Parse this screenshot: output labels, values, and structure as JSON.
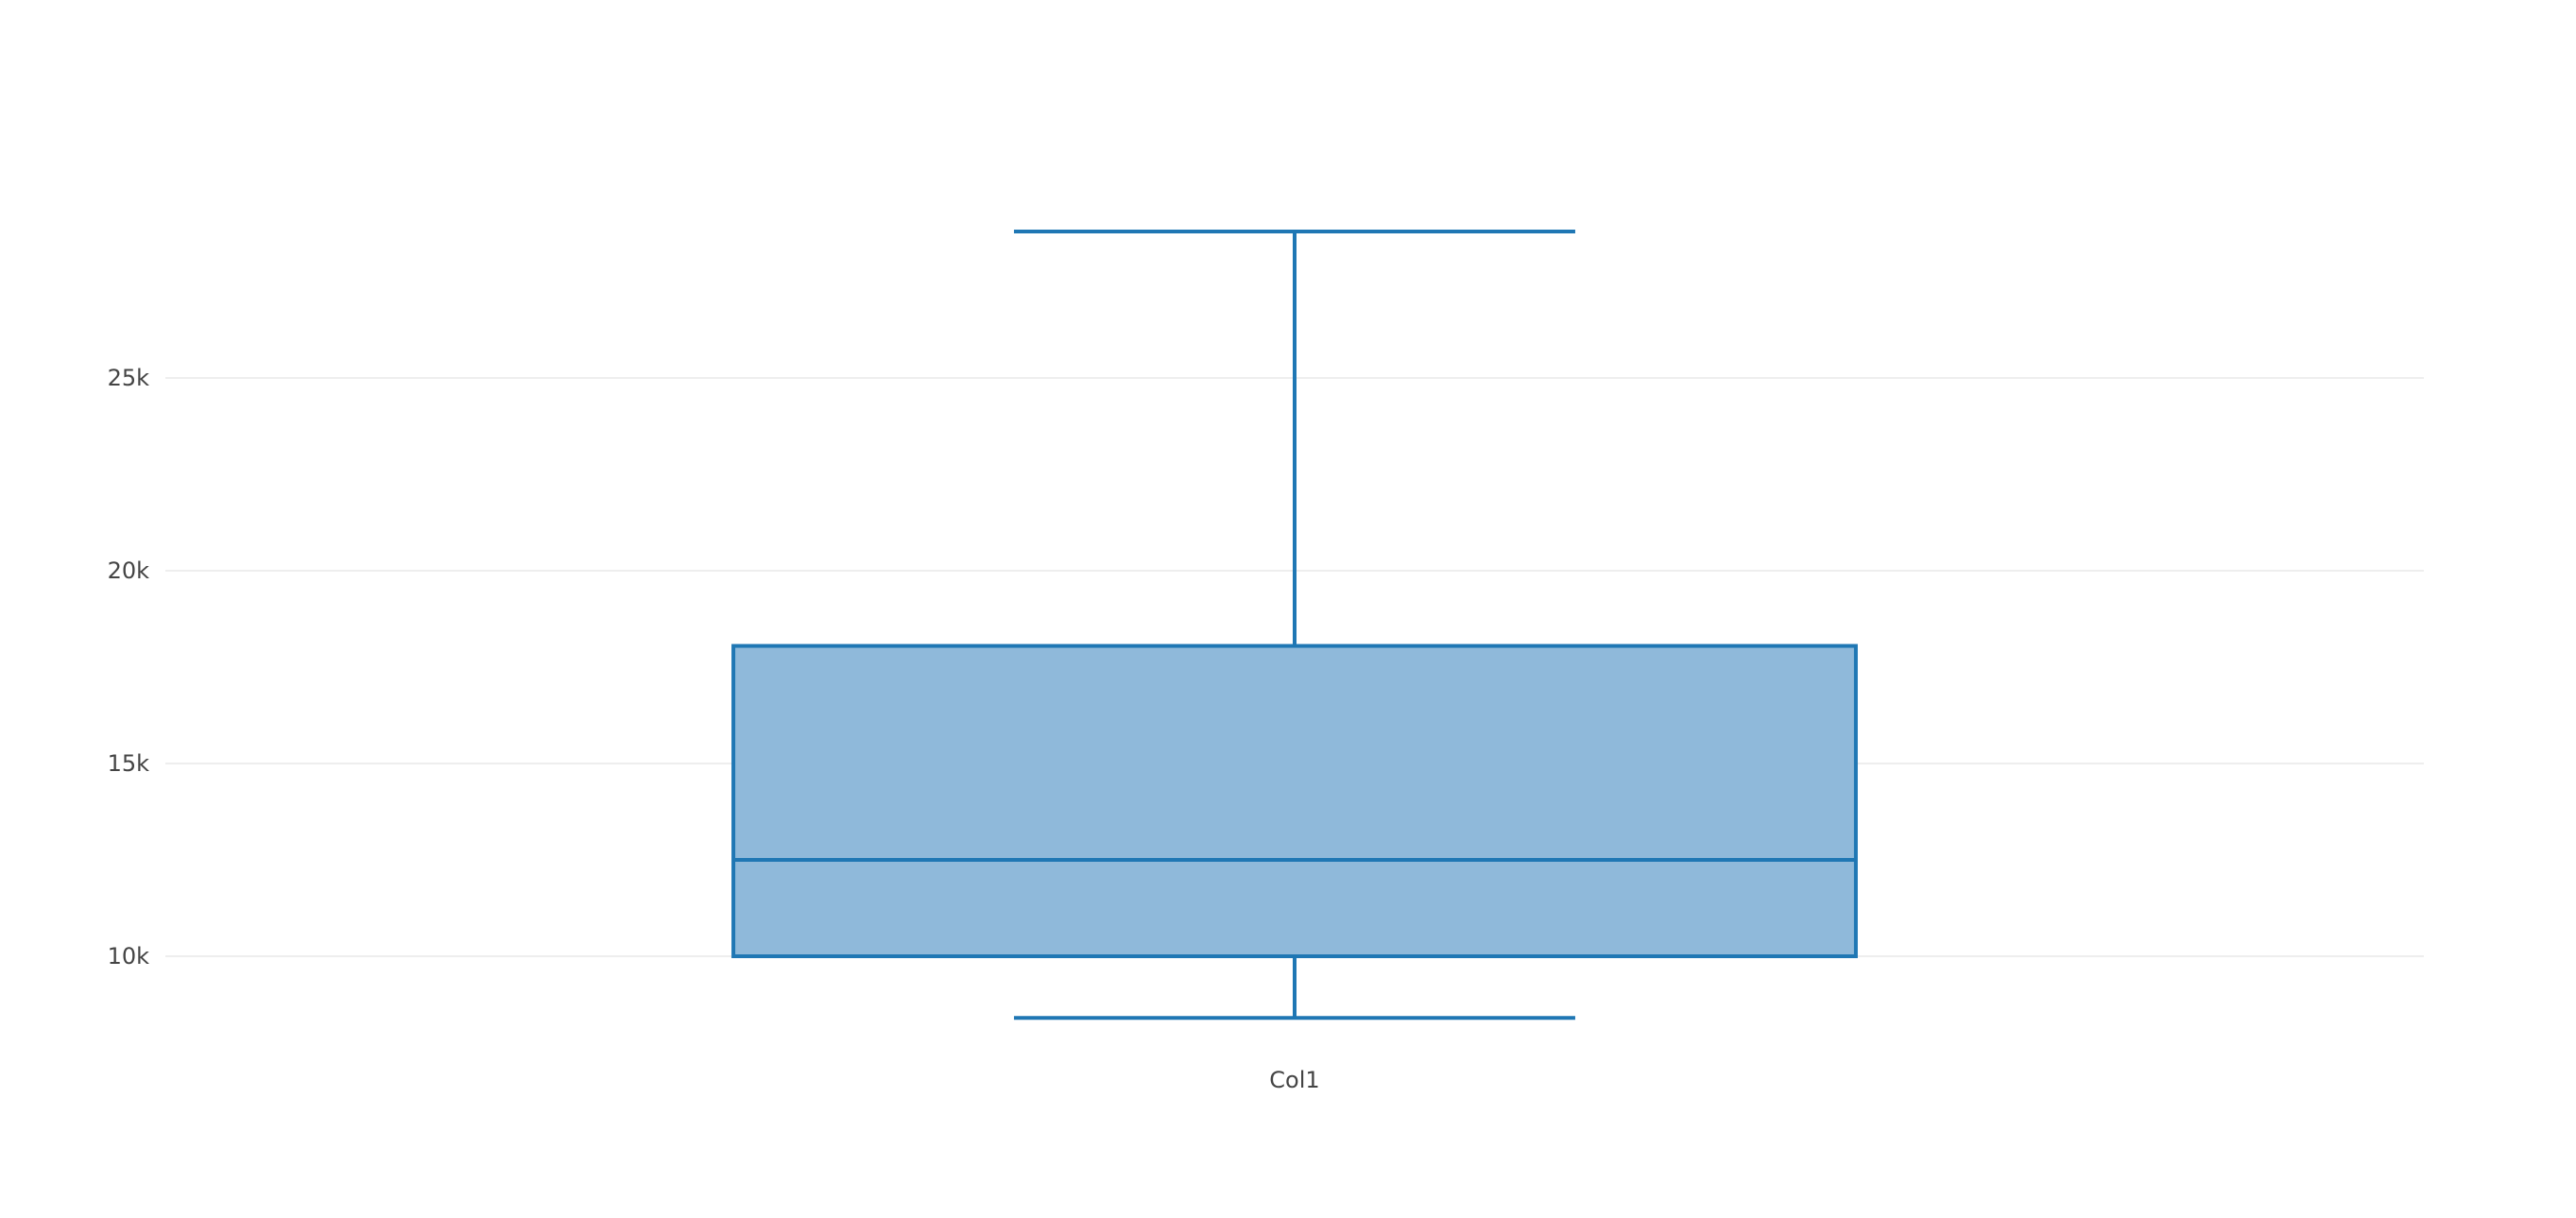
{
  "chart_data": {
    "type": "box",
    "categories": [
      "Col1"
    ],
    "series": [
      {
        "category": "Col1",
        "lower_whisker": 8400,
        "q1": 10000,
        "median": 12500,
        "q3": 18050,
        "upper_whisker": 28800
      }
    ],
    "y_ticks": [
      {
        "value": 10000,
        "label": "10k"
      },
      {
        "value": 15000,
        "label": "15k"
      },
      {
        "value": 20000,
        "label": "20k"
      },
      {
        "value": 25000,
        "label": "25k"
      }
    ],
    "ylim": [
      6700,
      30500
    ],
    "grid": true,
    "legend": "none"
  },
  "colors": {
    "box_line": "#1f77b4",
    "box_fill": "#8fb9da",
    "grid": "#eeeeee",
    "text": "#444444"
  }
}
